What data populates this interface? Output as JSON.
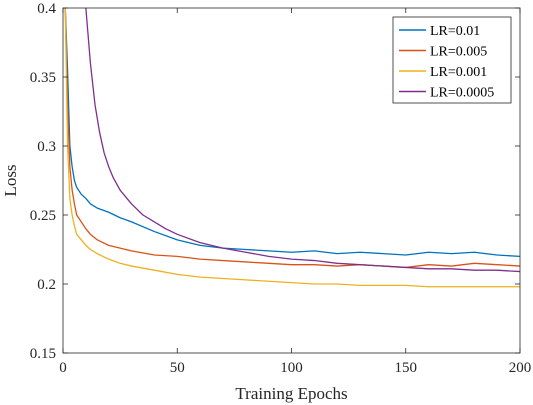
{
  "chart_data": {
    "type": "line",
    "xlabel": "Training Epochs",
    "ylabel": "Loss",
    "xlim": [
      0,
      200
    ],
    "ylim": [
      0.15,
      0.4
    ],
    "xticks": [
      0,
      50,
      100,
      150,
      200
    ],
    "yticks": [
      0.15,
      0.2,
      0.25,
      0.3,
      0.35,
      0.4
    ],
    "grid": false,
    "legend_position": "top-right",
    "series": [
      {
        "name": "LR=0.01",
        "color": "#0072BD",
        "x": [
          1,
          2,
          3,
          4,
          5,
          6,
          8,
          10,
          12,
          15,
          20,
          25,
          30,
          40,
          50,
          60,
          70,
          80,
          90,
          100,
          110,
          120,
          130,
          140,
          150,
          160,
          170,
          180,
          190,
          200
        ],
        "y": [
          0.4,
          0.355,
          0.3,
          0.285,
          0.275,
          0.27,
          0.265,
          0.262,
          0.258,
          0.255,
          0.252,
          0.248,
          0.245,
          0.238,
          0.232,
          0.228,
          0.226,
          0.225,
          0.224,
          0.223,
          0.224,
          0.222,
          0.223,
          0.222,
          0.221,
          0.223,
          0.222,
          0.223,
          0.221,
          0.22
        ]
      },
      {
        "name": "LR=0.005",
        "color": "#D95319",
        "x": [
          1,
          2,
          3,
          4,
          5,
          6,
          8,
          10,
          12,
          15,
          20,
          25,
          30,
          40,
          50,
          60,
          70,
          80,
          90,
          100,
          110,
          120,
          130,
          140,
          150,
          160,
          170,
          180,
          190,
          200
        ],
        "y": [
          0.4,
          0.33,
          0.285,
          0.268,
          0.258,
          0.25,
          0.245,
          0.24,
          0.236,
          0.232,
          0.228,
          0.226,
          0.224,
          0.221,
          0.22,
          0.218,
          0.217,
          0.216,
          0.215,
          0.214,
          0.214,
          0.213,
          0.214,
          0.213,
          0.212,
          0.214,
          0.213,
          0.215,
          0.214,
          0.213
        ]
      },
      {
        "name": "LR=0.001",
        "color": "#EDB120",
        "x": [
          1,
          2,
          3,
          4,
          5,
          6,
          8,
          10,
          12,
          15,
          20,
          25,
          30,
          40,
          50,
          60,
          70,
          80,
          90,
          100,
          110,
          120,
          130,
          140,
          150,
          160,
          170,
          180,
          190,
          200
        ],
        "y": [
          0.4,
          0.3,
          0.262,
          0.25,
          0.242,
          0.236,
          0.232,
          0.228,
          0.225,
          0.222,
          0.218,
          0.215,
          0.213,
          0.21,
          0.207,
          0.205,
          0.204,
          0.203,
          0.202,
          0.201,
          0.2,
          0.2,
          0.199,
          0.199,
          0.199,
          0.198,
          0.198,
          0.198,
          0.198,
          0.198
        ]
      },
      {
        "name": "LR=0.0005",
        "color": "#7E2F8E",
        "x": [
          10,
          12,
          14,
          16,
          18,
          20,
          22,
          25,
          28,
          30,
          35,
          40,
          45,
          50,
          60,
          70,
          80,
          90,
          100,
          110,
          120,
          130,
          140,
          150,
          160,
          170,
          180,
          190,
          200
        ],
        "y": [
          0.4,
          0.36,
          0.33,
          0.31,
          0.295,
          0.285,
          0.277,
          0.268,
          0.262,
          0.258,
          0.25,
          0.245,
          0.24,
          0.236,
          0.23,
          0.226,
          0.223,
          0.22,
          0.218,
          0.217,
          0.215,
          0.214,
          0.213,
          0.212,
          0.211,
          0.211,
          0.21,
          0.21,
          0.209
        ]
      }
    ]
  }
}
